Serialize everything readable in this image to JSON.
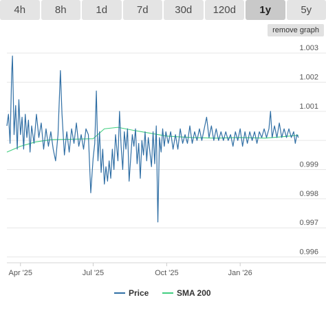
{
  "tabs": [
    {
      "label": "4h",
      "active": false
    },
    {
      "label": "8h",
      "active": false
    },
    {
      "label": "1d",
      "active": false
    },
    {
      "label": "7d",
      "active": false
    },
    {
      "label": "30d",
      "active": false
    },
    {
      "label": "120d",
      "active": false
    },
    {
      "label": "1y",
      "active": true
    },
    {
      "label": "5y",
      "active": false
    }
  ],
  "remove_graph_label": "remove graph",
  "colors": {
    "price": "#2f6ea4",
    "sma": "#3fce7f",
    "grid": "#e6e6e6",
    "tab_bg": "#e4e4e4",
    "tab_active_bg": "#c9c9c9",
    "text": "#555555"
  },
  "chart_data": {
    "type": "line",
    "title": "",
    "xlabel": "",
    "ylabel": "",
    "ylim": [
      0.9958,
      1.0035
    ],
    "xlim": [
      "2025-03-15",
      "2026-03-15"
    ],
    "x_ticks": [
      {
        "label": "Apr '25",
        "date": "2025-04-01"
      },
      {
        "label": "Jul '25",
        "date": "2025-07-01"
      },
      {
        "label": "Oct '25",
        "date": "2025-10-01"
      },
      {
        "label": "Jan '26",
        "date": "2026-01-01"
      }
    ],
    "y_ticks": [
      0.996,
      0.997,
      0.998,
      0.999,
      1.0,
      1.001,
      1.002,
      1.003
    ],
    "y_tick_labels": [
      "0.996",
      "0.997",
      "0.998",
      "0.999",
      "",
      "1.001",
      "1.002",
      "1.003"
    ],
    "grid": true,
    "legend_position": "bottom",
    "series": [
      {
        "name": "Price",
        "color": "#2f6ea4",
        "points": [
          [
            "2025-03-15",
            1.0005
          ],
          [
            "2025-03-17",
            1.0009
          ],
          [
            "2025-03-19",
            0.9999
          ],
          [
            "2025-03-21",
            1.0023
          ],
          [
            "2025-03-22",
            1.0029
          ],
          [
            "2025-03-24",
            1.0002
          ],
          [
            "2025-03-26",
            1.0012
          ],
          [
            "2025-03-28",
            0.9997
          ],
          [
            "2025-03-30",
            1.0014
          ],
          [
            "2025-04-01",
            1.0002
          ],
          [
            "2025-04-03",
            1.0008
          ],
          [
            "2025-04-05",
            0.9997
          ],
          [
            "2025-04-07",
            1.0009
          ],
          [
            "2025-04-09",
            1.0001
          ],
          [
            "2025-04-11",
            1.0007
          ],
          [
            "2025-04-13",
            0.9996
          ],
          [
            "2025-04-15",
            1.0005
          ],
          [
            "2025-04-18",
            0.9999
          ],
          [
            "2025-04-21",
            1.0009
          ],
          [
            "2025-04-24",
            1.0001
          ],
          [
            "2025-04-27",
            1.0006
          ],
          [
            "2025-04-30",
            0.9997
          ],
          [
            "2025-05-03",
            1.0004
          ],
          [
            "2025-05-06",
            0.9998
          ],
          [
            "2025-05-09",
            1.0003
          ],
          [
            "2025-05-12",
            0.9997
          ],
          [
            "2025-05-15",
            0.9993
          ],
          [
            "2025-05-18",
            1.0002
          ],
          [
            "2025-05-21",
            1.0024
          ],
          [
            "2025-05-23",
            1.0009
          ],
          [
            "2025-05-26",
            0.9995
          ],
          [
            "2025-05-29",
            1.0003
          ],
          [
            "2025-06-01",
            0.9996
          ],
          [
            "2025-06-04",
            1.0004
          ],
          [
            "2025-06-07",
            0.9999
          ],
          [
            "2025-06-10",
            1.0006
          ],
          [
            "2025-06-13",
            0.9998
          ],
          [
            "2025-06-16",
            1.0002
          ],
          [
            "2025-06-19",
            0.9997
          ],
          [
            "2025-06-22",
            1.0004
          ],
          [
            "2025-06-25",
            1.0002
          ],
          [
            "2025-06-28",
            0.9982
          ],
          [
            "2025-07-01",
            0.9994
          ],
          [
            "2025-07-03",
            0.9999
          ],
          [
            "2025-07-05",
            1.0017
          ],
          [
            "2025-07-07",
            0.9993
          ],
          [
            "2025-07-09",
            1.0003
          ],
          [
            "2025-07-11",
            0.9989
          ],
          [
            "2025-07-13",
            0.9997
          ],
          [
            "2025-07-15",
            0.9985
          ],
          [
            "2025-07-17",
            0.9991
          ],
          [
            "2025-07-19",
            0.9986
          ],
          [
            "2025-07-21",
            0.9993
          ],
          [
            "2025-07-23",
            0.9987
          ],
          [
            "2025-07-25",
            0.9997
          ],
          [
            "2025-07-27",
            0.999
          ],
          [
            "2025-07-29",
            1.0002
          ],
          [
            "2025-08-01",
            0.9993
          ],
          [
            "2025-08-03",
            1.001
          ],
          [
            "2025-08-05",
            0.9998
          ],
          [
            "2025-08-07",
            0.999
          ],
          [
            "2025-08-09",
            1.0003
          ],
          [
            "2025-08-11",
            0.9997
          ],
          [
            "2025-08-13",
            1.0004
          ],
          [
            "2025-08-15",
            0.9986
          ],
          [
            "2025-08-17",
            0.9994
          ],
          [
            "2025-08-19",
            1.0002
          ],
          [
            "2025-08-21",
            0.9998
          ],
          [
            "2025-08-23",
            1.0004
          ],
          [
            "2025-08-25",
            0.9992
          ],
          [
            "2025-08-27",
            0.9999
          ],
          [
            "2025-08-29",
            0.9987
          ],
          [
            "2025-08-31",
            1.0
          ],
          [
            "2025-09-02",
            0.9995
          ],
          [
            "2025-09-04",
            1.0003
          ],
          [
            "2025-09-06",
            0.9993
          ],
          [
            "2025-09-08",
            1.0001
          ],
          [
            "2025-09-10",
            0.9996
          ],
          [
            "2025-09-12",
            0.9991
          ],
          [
            "2025-09-14",
            1.0003
          ],
          [
            "2025-09-16",
            0.9992
          ],
          [
            "2025-09-18",
            1.0005
          ],
          [
            "2025-09-20",
            0.9972
          ],
          [
            "2025-09-22",
            1.0001
          ],
          [
            "2025-09-24",
            0.9996
          ],
          [
            "2025-09-26",
            1.0004
          ],
          [
            "2025-09-28",
            0.9998
          ],
          [
            "2025-09-30",
            1.0003
          ],
          [
            "2025-10-03",
            0.9999
          ],
          [
            "2025-10-06",
            1.0003
          ],
          [
            "2025-10-09",
            0.9997
          ],
          [
            "2025-10-12",
            1.0002
          ],
          [
            "2025-10-15",
            0.9997
          ],
          [
            "2025-10-18",
            1.0004
          ],
          [
            "2025-10-21",
            0.9999
          ],
          [
            "2025-10-24",
            1.0002
          ],
          [
            "2025-10-27",
            0.9999
          ],
          [
            "2025-10-30",
            1.0005
          ],
          [
            "2025-11-02",
            0.9999
          ],
          [
            "2025-11-05",
            1.0003
          ],
          [
            "2025-11-08",
            1.0
          ],
          [
            "2025-11-11",
            1.0004
          ],
          [
            "2025-11-14",
            1.0
          ],
          [
            "2025-11-17",
            1.0004
          ],
          [
            "2025-11-20",
            1.0008
          ],
          [
            "2025-11-23",
            1.0001
          ],
          [
            "2025-11-26",
            1.0005
          ],
          [
            "2025-11-29",
            1.0
          ],
          [
            "2025-12-02",
            1.0004
          ],
          [
            "2025-12-05",
            1.0
          ],
          [
            "2025-12-08",
            1.0003
          ],
          [
            "2025-12-11",
            1.0
          ],
          [
            "2025-12-14",
            1.0003
          ],
          [
            "2025-12-17",
            1.0
          ],
          [
            "2025-12-20",
            1.0002
          ],
          [
            "2025-12-23",
            0.9998
          ],
          [
            "2025-12-26",
            1.0003
          ],
          [
            "2025-12-29",
            1.0
          ],
          [
            "2026-01-01",
            1.0004
          ],
          [
            "2026-01-04",
            0.9998
          ],
          [
            "2026-01-07",
            1.0003
          ],
          [
            "2026-01-10",
            0.9999
          ],
          [
            "2026-01-13",
            1.0003
          ],
          [
            "2026-01-16",
            1.0
          ],
          [
            "2026-01-19",
            1.0003
          ],
          [
            "2026-01-22",
            0.9999
          ],
          [
            "2026-01-25",
            1.0003
          ],
          [
            "2026-01-28",
            1.0001
          ],
          [
            "2026-01-31",
            1.0004
          ],
          [
            "2026-02-03",
            1.0001
          ],
          [
            "2026-02-06",
            1.0004
          ],
          [
            "2026-02-08",
            1.001
          ],
          [
            "2026-02-10",
            1.0001
          ],
          [
            "2026-02-13",
            1.0005
          ],
          [
            "2026-02-16",
            1.0001
          ],
          [
            "2026-02-19",
            1.0006
          ],
          [
            "2026-02-22",
            1.0001
          ],
          [
            "2026-02-25",
            1.0004
          ],
          [
            "2026-02-28",
            1.0001
          ],
          [
            "2026-03-03",
            1.0004
          ],
          [
            "2026-03-06",
            1.0001
          ],
          [
            "2026-03-09",
            1.0003
          ],
          [
            "2026-03-11",
            0.9999
          ],
          [
            "2026-03-13",
            1.0002
          ],
          [
            "2026-03-15",
            1.0001
          ]
        ]
      },
      {
        "name": "SMA 200",
        "color": "#3fce7f",
        "points": [
          [
            "2025-03-15",
            0.9996
          ],
          [
            "2025-04-01",
            0.9998
          ],
          [
            "2025-04-20",
            0.99995
          ],
          [
            "2025-05-10",
            1.00003
          ],
          [
            "2025-06-01",
            1.00004
          ],
          [
            "2025-07-01",
            1.00006
          ],
          [
            "2025-07-15",
            1.0004
          ],
          [
            "2025-08-01",
            1.00045
          ],
          [
            "2025-08-20",
            1.00035
          ],
          [
            "2025-09-10",
            1.00025
          ],
          [
            "2025-10-01",
            1.00015
          ],
          [
            "2025-11-01",
            1.0001
          ],
          [
            "2025-12-01",
            1.00008
          ],
          [
            "2026-01-01",
            1.0001
          ],
          [
            "2026-02-01",
            1.00008
          ],
          [
            "2026-02-20",
            1.00012
          ],
          [
            "2026-03-15",
            1.00018
          ]
        ]
      }
    ]
  }
}
